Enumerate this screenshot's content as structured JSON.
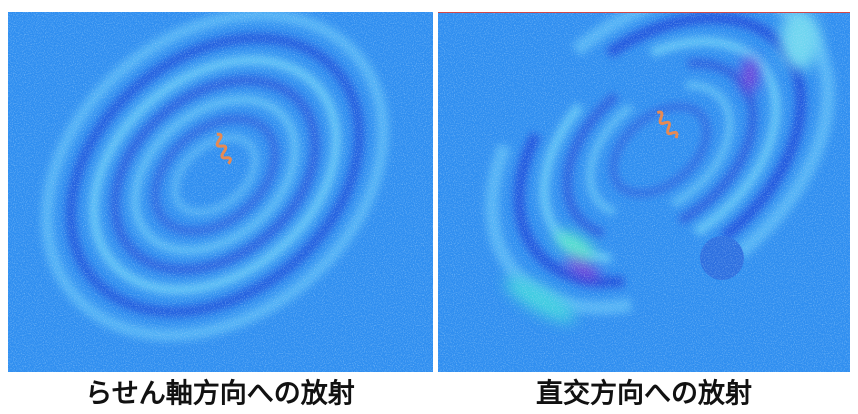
{
  "panels": [
    {
      "caption": "らせん軸方向への放射"
    },
    {
      "caption": "直交方向への放射"
    }
  ]
}
